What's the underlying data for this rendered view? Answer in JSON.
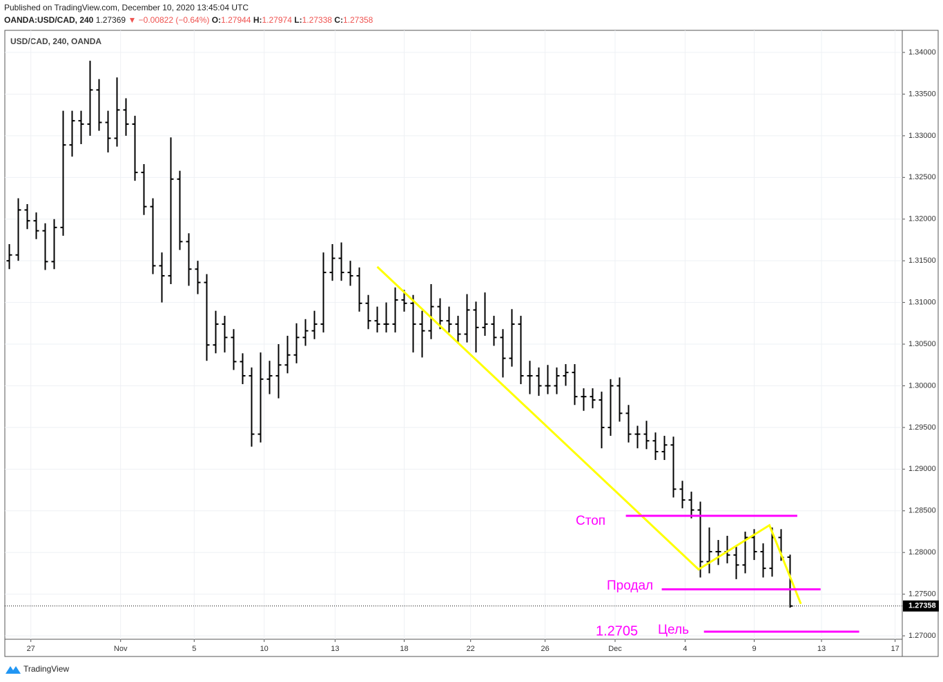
{
  "header": {
    "published": "Published on TradingView.com, December 10, 2020 13:45:04 UTC",
    "symbol": "OANDA:USD/CAD, 240",
    "last": "1.27369",
    "change": "▼ −0.00822 (−0.64%)",
    "o_label": "O:",
    "o": "1.27944",
    "h_label": "H:",
    "h": "1.27974",
    "l_label": "L:",
    "l": "1.27338",
    "c_label": "C:",
    "c": "1.27358"
  },
  "footer": {
    "brand": "TradingView"
  },
  "chart_data": {
    "type": "ohlc",
    "legend": "USD/CAD, 240, OANDA",
    "color": "#000000",
    "ohlc": [
      [
        1.315,
        1.317,
        1.314,
        1.3157
      ],
      [
        1.3157,
        1.3225,
        1.315,
        1.3211
      ],
      [
        1.3211,
        1.3218,
        1.3188,
        1.3198
      ],
      [
        1.3198,
        1.3208,
        1.3176,
        1.3186
      ],
      [
        1.3186,
        1.3195,
        1.3139,
        1.3149
      ],
      [
        1.3149,
        1.32,
        1.314,
        1.319
      ],
      [
        1.319,
        1.333,
        1.318,
        1.3289
      ],
      [
        1.3289,
        1.333,
        1.3275,
        1.3318
      ],
      [
        1.3318,
        1.333,
        1.329,
        1.3314
      ],
      [
        1.3314,
        1.339,
        1.33,
        1.3355
      ],
      [
        1.3355,
        1.3368,
        1.3306,
        1.3316
      ],
      [
        1.3316,
        1.333,
        1.328,
        1.3297
      ],
      [
        1.3297,
        1.337,
        1.3287,
        1.3331
      ],
      [
        1.3331,
        1.3345,
        1.33,
        1.3314
      ],
      [
        1.3314,
        1.3324,
        1.3246,
        1.3256
      ],
      [
        1.3256,
        1.3266,
        1.3205,
        1.3215
      ],
      [
        1.3215,
        1.3225,
        1.3134,
        1.3144
      ],
      [
        1.3144,
        1.316,
        1.31,
        1.3132
      ],
      [
        1.3132,
        1.3298,
        1.3122,
        1.3248
      ],
      [
        1.3248,
        1.3258,
        1.3163,
        1.3173
      ],
      [
        1.3173,
        1.3183,
        1.312,
        1.314
      ],
      [
        1.314,
        1.315,
        1.311,
        1.3124
      ],
      [
        1.3124,
        1.3134,
        1.303,
        1.3049
      ],
      [
        1.3049,
        1.309,
        1.3039,
        1.3074
      ],
      [
        1.3074,
        1.3084,
        1.304,
        1.3058
      ],
      [
        1.3058,
        1.3068,
        1.3019,
        1.3029
      ],
      [
        1.3029,
        1.3039,
        1.3002,
        1.3012
      ],
      [
        1.3012,
        1.3022,
        1.2927,
        1.2942
      ],
      [
        1.2942,
        1.304,
        1.2932,
        1.3008
      ],
      [
        1.3008,
        1.303,
        1.299,
        1.3012
      ],
      [
        1.3012,
        1.305,
        1.2985,
        1.3025
      ],
      [
        1.3025,
        1.306,
        1.3015,
        1.3037
      ],
      [
        1.3037,
        1.3075,
        1.3027,
        1.3058
      ],
      [
        1.3058,
        1.308,
        1.3048,
        1.3066
      ],
      [
        1.3066,
        1.309,
        1.3056,
        1.3074
      ],
      [
        1.3074,
        1.316,
        1.3064,
        1.3136
      ],
      [
        1.3136,
        1.317,
        1.3126,
        1.3153
      ],
      [
        1.3153,
        1.3172,
        1.3126,
        1.3136
      ],
      [
        1.3136,
        1.315,
        1.312,
        1.3132
      ],
      [
        1.3132,
        1.3142,
        1.3089,
        1.3099
      ],
      [
        1.3099,
        1.3109,
        1.3068,
        1.3078
      ],
      [
        1.3078,
        1.3095,
        1.3064,
        1.3074
      ],
      [
        1.3074,
        1.31,
        1.3064,
        1.3074
      ],
      [
        1.3074,
        1.3118,
        1.3064,
        1.3103
      ],
      [
        1.3103,
        1.3115,
        1.3089,
        1.3099
      ],
      [
        1.3099,
        1.3109,
        1.304,
        1.3074
      ],
      [
        1.3074,
        1.309,
        1.3034,
        1.3066
      ],
      [
        1.3066,
        1.3122,
        1.3056,
        1.3095
      ],
      [
        1.3095,
        1.3105,
        1.3068,
        1.3078
      ],
      [
        1.3078,
        1.3095,
        1.3064,
        1.3074
      ],
      [
        1.3074,
        1.3084,
        1.3052,
        1.3062
      ],
      [
        1.3062,
        1.311,
        1.3052,
        1.3091
      ],
      [
        1.3091,
        1.3101,
        1.304,
        1.307
      ],
      [
        1.307,
        1.3112,
        1.306,
        1.3074
      ],
      [
        1.3074,
        1.3084,
        1.3048,
        1.3058
      ],
      [
        1.3058,
        1.3068,
        1.301,
        1.3033
      ],
      [
        1.3033,
        1.3092,
        1.3023,
        1.3074
      ],
      [
        1.3074,
        1.3084,
        1.3002,
        1.3012
      ],
      [
        1.3012,
        1.303,
        1.299,
        1.3012
      ],
      [
        1.3012,
        1.3022,
        1.2988,
        1.3
      ],
      [
        1.3,
        1.3025,
        1.299,
        1.3
      ],
      [
        1.3,
        1.3022,
        1.299,
        1.3012
      ],
      [
        1.3012,
        1.3026,
        1.3,
        1.3016
      ],
      [
        1.3016,
        1.3026,
        1.2977,
        1.2987
      ],
      [
        1.2987,
        1.2997,
        1.297,
        1.2987
      ],
      [
        1.2987,
        1.2997,
        1.2973,
        1.2983
      ],
      [
        1.2983,
        1.2993,
        1.2925,
        1.295
      ],
      [
        1.295,
        1.3008,
        1.294,
        1.3
      ],
      [
        1.3,
        1.301,
        1.2957,
        1.2967
      ],
      [
        1.2967,
        1.2977,
        1.2932,
        1.2942
      ],
      [
        1.2942,
        1.2952,
        1.2925,
        1.2942
      ],
      [
        1.2942,
        1.2958,
        1.2924,
        1.2934
      ],
      [
        1.2934,
        1.2944,
        1.2911,
        1.2921
      ],
      [
        1.2921,
        1.294,
        1.2911,
        1.2929
      ],
      [
        1.2929,
        1.2939,
        1.2866,
        1.2876
      ],
      [
        1.2876,
        1.2886,
        1.2853,
        1.2863
      ],
      [
        1.2863,
        1.2873,
        1.2841,
        1.2851
      ],
      [
        1.2851,
        1.2861,
        1.277,
        1.2789
      ],
      [
        1.2789,
        1.283,
        1.2775,
        1.2801
      ],
      [
        1.2801,
        1.2815,
        1.2785,
        1.2801
      ],
      [
        1.2801,
        1.282,
        1.2787,
        1.2797
      ],
      [
        1.2797,
        1.2807,
        1.2768,
        1.2785
      ],
      [
        1.2785,
        1.2825,
        1.2775,
        1.2818
      ],
      [
        1.2818,
        1.2828,
        1.2791,
        1.2801
      ],
      [
        1.2801,
        1.2811,
        1.277,
        1.2781
      ],
      [
        1.2781,
        1.283,
        1.2771,
        1.2818
      ],
      [
        1.2818,
        1.2828,
        1.279,
        1.2794
      ],
      [
        1.27944,
        1.27974,
        1.27338,
        1.27358
      ]
    ],
    "xlim": [
      -0.5,
      99.5
    ],
    "xticks": [
      {
        "value": 2.4,
        "label": "27"
      },
      {
        "value": 12.4,
        "label": "Nov"
      },
      {
        "value": 20.6,
        "label": "5"
      },
      {
        "value": 28.4,
        "label": "10"
      },
      {
        "value": 36.3,
        "label": "13"
      },
      {
        "value": 44.0,
        "label": "18"
      },
      {
        "value": 51.4,
        "label": "22"
      },
      {
        "value": 59.7,
        "label": "26"
      },
      {
        "value": 67.5,
        "label": "Dec"
      },
      {
        "value": 75.3,
        "label": "4"
      },
      {
        "value": 83.0,
        "label": "9"
      },
      {
        "value": 90.5,
        "label": "13"
      },
      {
        "value": 98.7,
        "label": "17"
      }
    ],
    "ylim": [
      1.26959,
      1.34265
    ],
    "yticks": [
      {
        "value": 1.27,
        "label": "1.27000"
      },
      {
        "value": 1.275,
        "label": "1.27500"
      },
      {
        "value": 1.28,
        "label": "1.28000"
      },
      {
        "value": 1.285,
        "label": "1.28500"
      },
      {
        "value": 1.29,
        "label": "1.29000"
      },
      {
        "value": 1.295,
        "label": "1.29500"
      },
      {
        "value": 1.3,
        "label": "1.30000"
      },
      {
        "value": 1.305,
        "label": "1.30500"
      },
      {
        "value": 1.31,
        "label": "1.31000"
      },
      {
        "value": 1.315,
        "label": "1.31500"
      },
      {
        "value": 1.32,
        "label": "1.32000"
      },
      {
        "value": 1.325,
        "label": "1.32500"
      },
      {
        "value": 1.33,
        "label": "1.33000"
      },
      {
        "value": 1.335,
        "label": "1.33500"
      },
      {
        "value": 1.34,
        "label": "1.34000"
      }
    ],
    "grid": true,
    "drawings": [
      {
        "color": "#ffff00",
        "points": [
          [
            41.0,
            1.31428
          ],
          [
            76.8,
            1.27797
          ],
          [
            84.7,
            1.28327
          ],
          [
            88.2,
            1.27384
          ]
        ]
      },
      {
        "color": "#ff00ff",
        "points": [
          [
            68.7,
            1.2844
          ],
          [
            87.8,
            1.2844
          ]
        ]
      },
      {
        "color": "#ff00ff",
        "points": [
          [
            72.7,
            1.27558
          ],
          [
            90.4,
            1.27558
          ]
        ]
      },
      {
        "color": "#ff00ff",
        "points": [
          [
            77.4,
            1.2705
          ],
          [
            94.7,
            1.2705
          ]
        ]
      }
    ],
    "annotations": [
      "Стоп",
      "Продал",
      "1.2705",
      "Цель"
    ]
  }
}
